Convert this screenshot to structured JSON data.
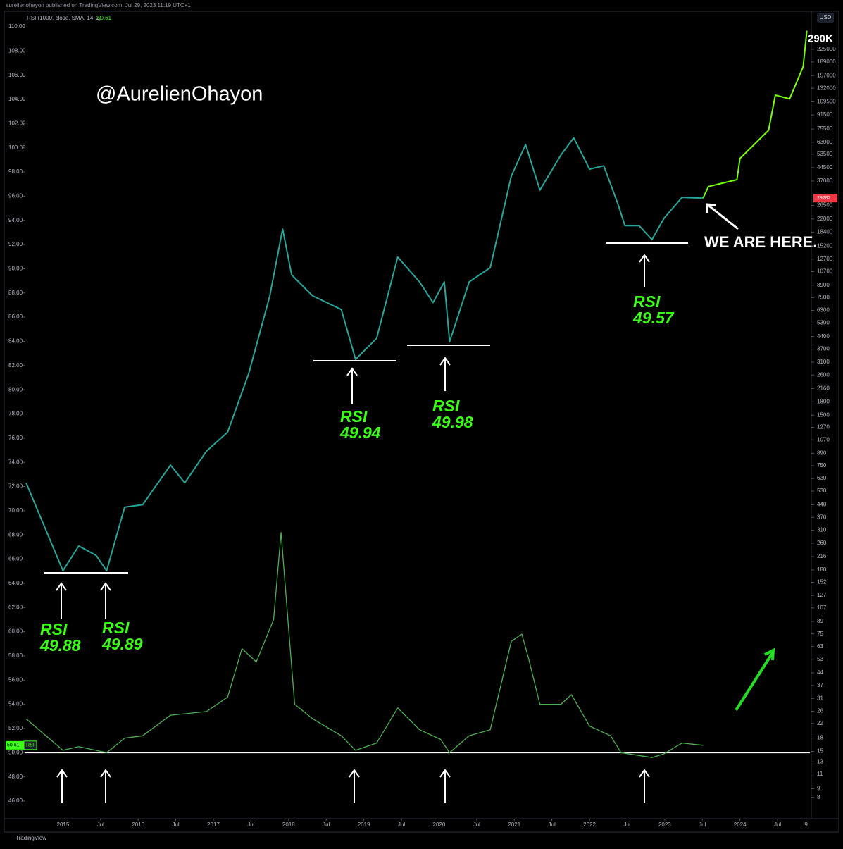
{
  "header": {
    "publisher": "aurelienohayon published on TradingView.com, Jul 29, 2023 11:19 UTC+1",
    "indicator": "RSI (1000, close, SMA, 14, 2)",
    "currency": "USD",
    "watermark": "@AurelienOhayon",
    "footer": "TradingView"
  },
  "chart_data": {
    "type": "line",
    "xlim": [
      2014.5,
      2024.93
    ],
    "xticks": [
      2015,
      {
        "value": 2015.5,
        "label": "Jul"
      },
      2016,
      {
        "value": 2016.5,
        "label": "Jul"
      },
      2017,
      {
        "value": 2017.5,
        "label": "Jul"
      },
      2018,
      {
        "value": 2018.5,
        "label": "Jul"
      },
      2019,
      {
        "value": 2019.5,
        "label": "Jul"
      },
      2020,
      {
        "value": 2020.5,
        "label": "Jul"
      },
      2021,
      {
        "value": 2021.5,
        "label": "Jul"
      },
      2022,
      {
        "value": 2022.5,
        "label": "Jul"
      },
      2023,
      {
        "value": 2023.5,
        "label": "Jul"
      },
      2024,
      {
        "value": 2024.5,
        "label": "Jul"
      },
      {
        "value": 2024.88,
        "label": "9"
      }
    ],
    "ylim": [
      46,
      110
    ],
    "yticks": [
      {
        "value": 46,
        "label": "46.00"
      },
      {
        "value": 48,
        "label": "48.00"
      },
      {
        "value": 50,
        "label": "50.00"
      },
      {
        "value": 52,
        "label": "52.00"
      },
      {
        "value": 54,
        "label": "54.00"
      },
      {
        "value": 56,
        "label": "56.00"
      },
      {
        "value": 58,
        "label": "58.00"
      },
      {
        "value": 60,
        "label": "60.00"
      },
      {
        "value": 62,
        "label": "62.00"
      },
      {
        "value": 64,
        "label": "64.00"
      },
      {
        "value": 66,
        "label": "66.00"
      },
      {
        "value": 68,
        "label": "68.00"
      },
      {
        "value": 70,
        "label": "70.00"
      },
      {
        "value": 72,
        "label": "72.00"
      },
      {
        "value": 74,
        "label": "74.00"
      },
      {
        "value": 76,
        "label": "76.00"
      },
      {
        "value": 78,
        "label": "78.00"
      },
      {
        "value": 80,
        "label": "80.00"
      },
      {
        "value": 82,
        "label": "82.00"
      },
      {
        "value": 84,
        "label": "84.00"
      },
      {
        "value": 86,
        "label": "86.00"
      },
      {
        "value": 88,
        "label": "88.00"
      },
      {
        "value": 90,
        "label": "90.00"
      },
      {
        "value": 92,
        "label": "92.00"
      },
      {
        "value": 94,
        "label": "94.00"
      },
      {
        "value": 96,
        "label": "96.00"
      },
      {
        "value": 98,
        "label": "98.00"
      },
      {
        "value": 100,
        "label": "100.00"
      },
      {
        "value": 102,
        "label": "102.00"
      },
      {
        "value": 104,
        "label": "104.00"
      },
      {
        "value": 106,
        "label": "106.00"
      },
      {
        "value": 108,
        "label": "108.00"
      },
      {
        "value": 110,
        "label": "110.00"
      }
    ],
    "y2scale": "log",
    "y2lim": [
      7.6,
      306000
    ],
    "y2ticks": [
      225000,
      189000,
      157000,
      132000,
      109500,
      91500,
      75500,
      63000,
      53500,
      44500,
      37000,
      26500,
      22000,
      18400,
      15200,
      12700,
      10700,
      8900,
      7500,
      6300,
      5300,
      4400,
      3700,
      3100,
      2600,
      2160,
      1800,
      1500,
      1270,
      1070,
      890,
      750,
      630,
      530,
      440,
      370,
      310,
      260,
      216,
      180,
      152,
      127,
      107,
      89,
      75,
      63,
      53,
      44,
      37,
      31,
      26,
      22,
      18,
      15,
      13,
      11,
      9,
      8
    ],
    "hline": 50,
    "series": [
      {
        "axis": "y2",
        "color": "#26a69a",
        "x": [
          2014.51,
          2015.0,
          2015.21,
          2015.44,
          2015.58,
          2015.82,
          2016.06,
          2016.43,
          2016.62,
          2016.91,
          2017.19,
          2017.47,
          2017.75,
          2017.92,
          2018.04,
          2018.32,
          2018.7,
          2018.89,
          2019.17,
          2019.45,
          2019.74,
          2019.92,
          2020.07,
          2020.14,
          2020.4,
          2020.68,
          2020.96,
          2021.15,
          2021.34,
          2021.62,
          2021.79,
          2022.0,
          2022.19,
          2022.38,
          2022.47,
          2022.66,
          2022.83,
          2022.99,
          2023.23,
          2023.51
        ],
        "values": [
          594,
          178,
          250,
          220,
          178,
          425,
          440,
          757,
          594,
          918,
          1190,
          2655,
          7680,
          19200,
          10250,
          7680,
          6370,
          3220,
          4300,
          13060,
          9300,
          7000,
          9300,
          4100,
          9300,
          11300,
          39600,
          61100,
          32700,
          52900,
          66900,
          43600,
          45600,
          26900,
          20100,
          20100,
          16600,
          22200,
          29600,
          29282
        ]
      },
      {
        "axis": "y2",
        "color": "#76ff03",
        "x": [
          2023.51,
          2023.58,
          2023.96,
          2024.0,
          2024.38,
          2024.47,
          2024.66,
          2024.84,
          2024.89
        ],
        "values": [
          29282,
          34300,
          37700,
          50400,
          74100,
          120000,
          114000,
          177000,
          290000
        ]
      },
      {
        "axis": "y",
        "color": "#4caf50",
        "x": [
          2014.51,
          2015.0,
          2015.21,
          2015.58,
          2015.82,
          2016.06,
          2016.43,
          2016.91,
          2017.19,
          2017.38,
          2017.57,
          2017.8,
          2017.9,
          2017.99,
          2018.08,
          2018.32,
          2018.7,
          2018.89,
          2019.17,
          2019.45,
          2019.74,
          2020.02,
          2020.14,
          2020.4,
          2020.68,
          2020.96,
          2021.1,
          2021.19,
          2021.34,
          2021.62,
          2021.76,
          2022.0,
          2022.28,
          2022.42,
          2022.83,
          2022.99,
          2023.23,
          2023.51
        ],
        "values": [
          52.8,
          50.2,
          50.5,
          50.0,
          51.2,
          51.4,
          53.1,
          53.4,
          54.6,
          58.6,
          57.5,
          61.0,
          68.2,
          61.0,
          54.0,
          52.8,
          51.4,
          50.2,
          50.8,
          53.7,
          51.9,
          51.1,
          50.0,
          51.4,
          51.9,
          59.2,
          59.8,
          57.8,
          54.0,
          54.0,
          54.8,
          52.2,
          51.4,
          50.0,
          49.6,
          49.9,
          50.8,
          50.61
        ]
      }
    ],
    "rsi_last": {
      "value": 50.61,
      "name": "RSI"
    },
    "price_last": 29282,
    "target": {
      "value": 290000,
      "label": "290K"
    },
    "rsi_lows": [
      {
        "label": "RSI",
        "value": 49.88
      },
      {
        "label": "RSI",
        "value": 49.89
      },
      {
        "label": "RSI",
        "value": 49.94
      },
      {
        "label": "RSI",
        "value": 49.98
      },
      {
        "label": "RSI",
        "value": 49.57
      }
    ],
    "annotation": "WE ARE HERE."
  }
}
